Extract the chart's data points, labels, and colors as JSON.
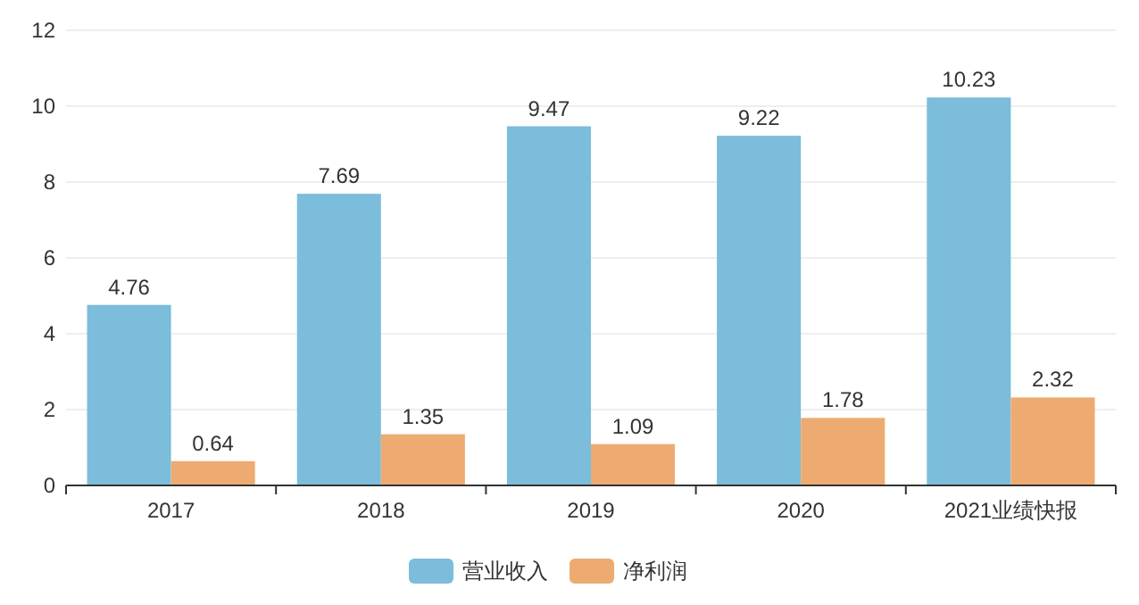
{
  "chart_data": {
    "type": "bar",
    "categories": [
      "2017",
      "2018",
      "2019",
      "2020",
      "2021业绩快报"
    ],
    "series": [
      {
        "name": "营业收入",
        "color": "#7bbdda",
        "values": [
          4.76,
          7.69,
          9.47,
          9.22,
          10.23
        ]
      },
      {
        "name": "净利润",
        "color": "#edab72",
        "values": [
          0.64,
          1.35,
          1.09,
          1.78,
          2.32
        ]
      }
    ],
    "ylim": [
      0,
      12
    ],
    "yticks": [
      0,
      2,
      4,
      6,
      8,
      10,
      12
    ],
    "grid": "y",
    "legend": "bottom",
    "data_labels": true
  }
}
